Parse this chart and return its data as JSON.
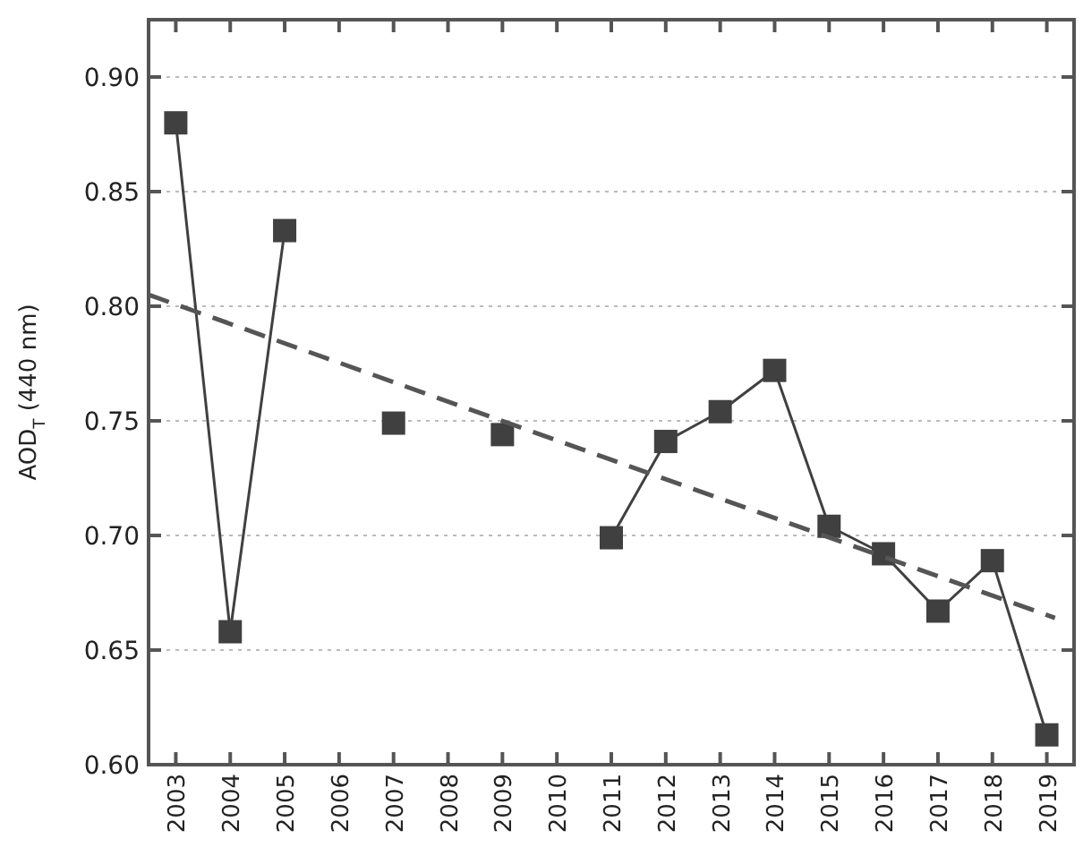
{
  "chart_data": {
    "type": "line",
    "ylabel": "AOD$_{T}$ (440 nm)",
    "x": [
      2003,
      2004,
      2005,
      2006,
      2007,
      2008,
      2009,
      2010,
      2011,
      2012,
      2013,
      2014,
      2015,
      2016,
      2017,
      2018,
      2019
    ],
    "series": [
      {
        "color": "#404040",
        "marker": "square",
        "line_style": "solid",
        "values": [
          0.88,
          0.658,
          0.833,
          null,
          0.749,
          null,
          0.744,
          null,
          0.699,
          0.741,
          0.754,
          0.772,
          0.704,
          0.692,
          0.667,
          0.689,
          0.613
        ]
      },
      {
        "type": "line",
        "color": "#555555",
        "marker": "none",
        "line_style": "dashed",
        "x": [
          2002.5,
          2019.15
        ],
        "values": [
          0.805,
          0.664
        ]
      }
    ],
    "xlim": [
      2002.5,
      2019.5
    ],
    "xticks": [
      2003,
      2004,
      2005,
      2006,
      2007,
      2008,
      2009,
      2010,
      2011,
      2012,
      2013,
      2014,
      2015,
      2016,
      2017,
      2018,
      2019
    ],
    "ylim": [
      0.6,
      0.925
    ],
    "yticks": [
      {
        "value": 0.6,
        "label": "0.60"
      },
      {
        "value": 0.65,
        "label": "0.65"
      },
      {
        "value": 0.7,
        "label": "0.70"
      },
      {
        "value": 0.75,
        "label": "0.75"
      },
      {
        "value": 0.8,
        "label": "0.80"
      },
      {
        "value": 0.85,
        "label": "0.85"
      },
      {
        "value": 0.9,
        "label": "0.90"
      }
    ],
    "grid": "y"
  }
}
